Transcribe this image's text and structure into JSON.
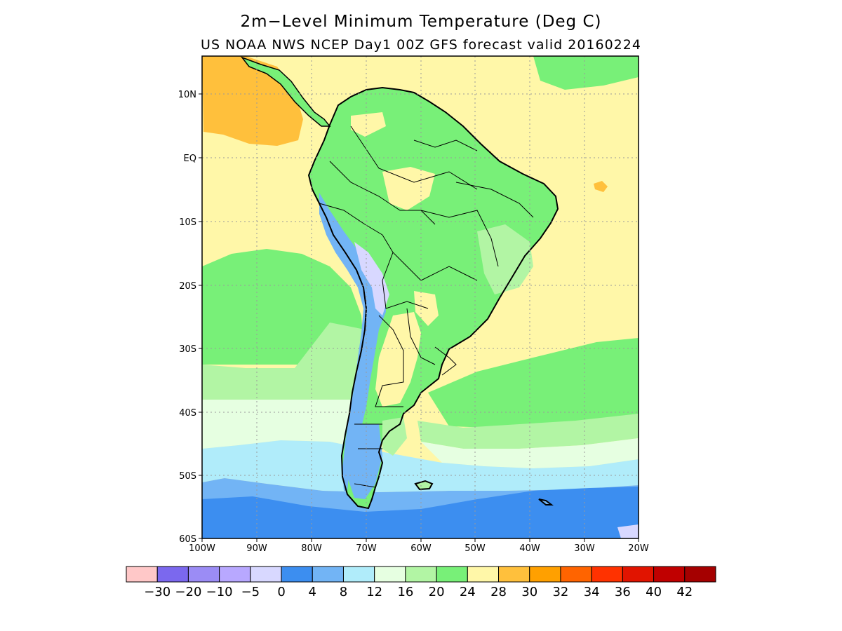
{
  "title": "2m−Level Minimum Temperature (Deg C)",
  "subtitle": "US NOAA NWS NCEP Day1 00Z GFS forecast valid 20160224",
  "axes": {
    "lat_labels": [
      "10N",
      "EQ",
      "10S",
      "20S",
      "30S",
      "40S",
      "50S",
      "60S"
    ],
    "lon_labels": [
      "100W",
      "90W",
      "80W",
      "70W",
      "60W",
      "50W",
      "40W",
      "30W",
      "20W"
    ]
  },
  "colorbar": {
    "colors": [
      "#ffc8c8",
      "#7b68ee",
      "#9b8cf5",
      "#b8a8ff",
      "#d8d8ff",
      "#3c8ef0",
      "#72b4f5",
      "#b0ecfa",
      "#e6ffe1",
      "#b2f5a4",
      "#78f078",
      "#fff7a8",
      "#ffc03c",
      "#ffa000",
      "#ff6400",
      "#ff3200",
      "#e11400",
      "#c00000",
      "#a50000"
    ],
    "labels": [
      "−30",
      "−20",
      "−10",
      "−5",
      "0",
      "4",
      "8",
      "12",
      "16",
      "20",
      "24",
      "28",
      "30",
      "32",
      "34",
      "36",
      "40",
      "42"
    ]
  },
  "palette": {
    "ocean_warm": "#fff7a8",
    "ocean_hot": "#ffc03c",
    "land_green": "#78f078",
    "light_green": "#b2f5a4",
    "pale_green": "#e6ffe1",
    "cyan": "#b0ecfa",
    "light_blue": "#72b4f5",
    "blue": "#3c8ef0",
    "lavender": "#d8d8ff",
    "grid": "#9a9a9a",
    "border": "#000000"
  }
}
